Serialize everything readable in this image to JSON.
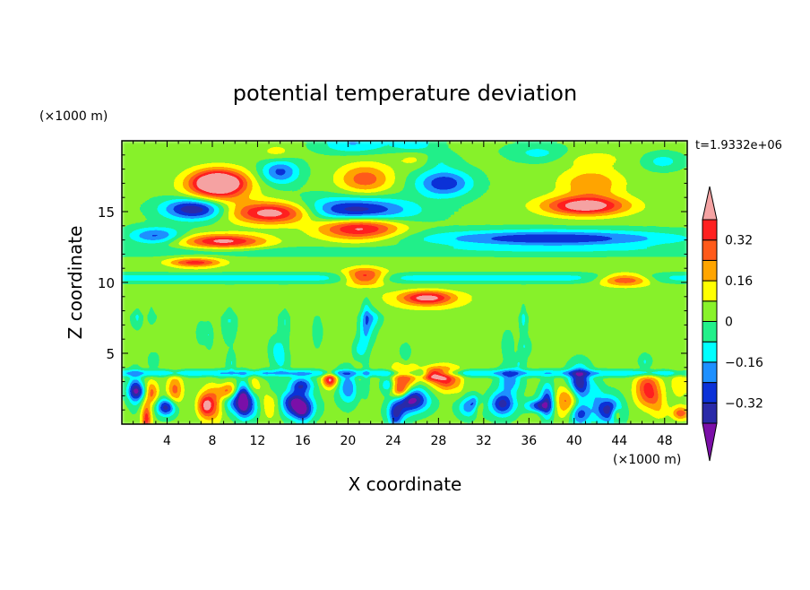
{
  "chart_data": {
    "type": "heatmap",
    "title": "potential temperature deviation",
    "xlabel": "X coordinate",
    "ylabel": "Z coordinate",
    "x_unit": "(×1000 m)",
    "y_unit": "(×1000 m)",
    "time_label": "t=1.9332e+06",
    "xlim": [
      0,
      50
    ],
    "ylim": [
      0,
      20
    ],
    "x_ticks": [
      4,
      8,
      12,
      16,
      20,
      24,
      28,
      32,
      36,
      40,
      44,
      48
    ],
    "y_ticks": [
      5,
      10,
      15
    ],
    "grid": false,
    "colorbar": {
      "levels": [
        -0.4,
        -0.32,
        -0.24,
        -0.16,
        -0.08,
        0,
        0.08,
        0.16,
        0.24,
        0.32,
        0.4
      ],
      "labels": [
        "0.32",
        "0.16",
        "0",
        "−0.16",
        "−0.32"
      ],
      "label_values": [
        0.32,
        0.16,
        0,
        -0.16,
        -0.32
      ],
      "colors": [
        "#7b0fa8",
        "#2a2aa8",
        "#0c32d8",
        "#1e90ff",
        "#00ffff",
        "#22f08a",
        "#88f22a",
        "#ffff00",
        "#ffa500",
        "#ff5a1a",
        "#ff2020",
        "#f5a3a3"
      ],
      "extend": "both"
    },
    "features": [
      {
        "x": 8.5,
        "z": 16.6,
        "rx": 3.2,
        "rz": 1.4,
        "v": 0.3
      },
      {
        "x": 21.5,
        "z": 17.3,
        "rx": 2.5,
        "rz": 1.1,
        "v": 0.28
      },
      {
        "x": 41.5,
        "z": 17.0,
        "rx": 3.0,
        "rz": 1.1,
        "v": 0.22
      },
      {
        "x": 8.5,
        "z": 17.1,
        "rx": 2.3,
        "rz": 0.8,
        "v": 0.5
      },
      {
        "x": 14.0,
        "z": 17.8,
        "rx": 1.8,
        "rz": 0.9,
        "v": -0.3
      },
      {
        "x": 28.5,
        "z": 17.0,
        "rx": 2.6,
        "rz": 1.0,
        "v": -0.34
      },
      {
        "x": 6.5,
        "z": 15.2,
        "rx": 3.0,
        "rz": 0.8,
        "v": -0.48
      },
      {
        "x": 20.5,
        "z": 15.0,
        "rx": 5.5,
        "rz": 1.0,
        "v": -0.45
      },
      {
        "x": 13.5,
        "z": 14.9,
        "rx": 4.0,
        "rz": 0.8,
        "v": 0.5
      },
      {
        "x": 21.0,
        "z": 13.9,
        "rx": 4.0,
        "rz": 0.9,
        "v": 0.5
      },
      {
        "x": 41.0,
        "z": 15.4,
        "rx": 4.0,
        "rz": 0.7,
        "v": 0.5
      },
      {
        "x": 9.0,
        "z": 12.9,
        "rx": 4.0,
        "rz": 0.5,
        "v": 0.45
      },
      {
        "x": 38.0,
        "z": 13.1,
        "rx": 12.0,
        "rz": 0.6,
        "v": -0.36
      },
      {
        "x": 3.0,
        "z": 13.3,
        "rx": 2.5,
        "rz": 0.6,
        "v": -0.3
      },
      {
        "x": 6.5,
        "z": 11.4,
        "rx": 2.5,
        "rz": 0.3,
        "v": 0.42
      },
      {
        "x": 44.5,
        "z": 10.2,
        "rx": 2.5,
        "rz": 0.4,
        "v": 0.45
      },
      {
        "x": 21.5,
        "z": 10.4,
        "rx": 2.0,
        "rz": 0.6,
        "v": 0.45
      },
      {
        "x": 27.0,
        "z": 8.9,
        "rx": 2.5,
        "rz": 0.5,
        "v": 0.45
      },
      {
        "x": 10.5,
        "z": 1.6,
        "rx": 1.6,
        "rz": 0.9,
        "v": -0.34
      },
      {
        "x": 15.5,
        "z": 1.3,
        "rx": 1.5,
        "rz": 0.9,
        "v": -0.42
      },
      {
        "x": 26.0,
        "z": 1.6,
        "rx": 1.4,
        "rz": 0.8,
        "v": -0.3
      },
      {
        "x": 43.0,
        "z": 1.0,
        "rx": 1.2,
        "rz": 1.0,
        "v": -0.4
      },
      {
        "x": 8.0,
        "z": 1.4,
        "rx": 1.0,
        "rz": 1.3,
        "v": 0.3
      },
      {
        "x": 39.5,
        "z": 1.6,
        "rx": 1.2,
        "rz": 1.3,
        "v": 0.3
      },
      {
        "x": 46.5,
        "z": 2.2,
        "rx": 1.2,
        "rz": 1.1,
        "v": 0.3
      },
      {
        "x": 27.5,
        "z": 3.5,
        "rx": 1.0,
        "rz": 0.4,
        "v": 0.45
      }
    ]
  }
}
